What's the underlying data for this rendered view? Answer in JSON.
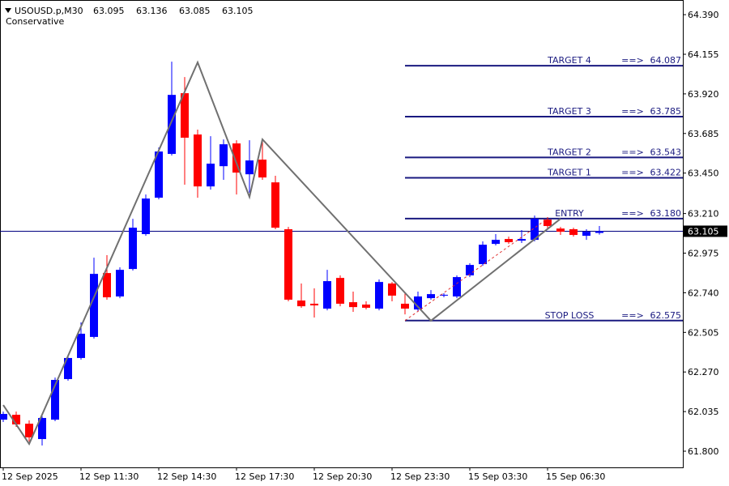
{
  "chart_data": {
    "type": "candlestick",
    "header": {
      "symbol": "USOUSD.p,M30",
      "open": 63.095,
      "high": 63.136,
      "low": 63.085,
      "close": 63.105
    },
    "subtitle": "Conservative",
    "categories": [
      "12 Sep 2025",
      null,
      null,
      null,
      null,
      null,
      "12 Sep 11:30",
      null,
      null,
      null,
      null,
      null,
      "12 Sep 14:30",
      null,
      null,
      null,
      null,
      null,
      "12 Sep 17:30",
      null,
      null,
      null,
      null,
      null,
      "12 Sep 20:30",
      null,
      null,
      null,
      null,
      null,
      "12 Sep 23:30",
      null,
      null,
      null,
      null,
      null,
      "15 Sep 03:30",
      null,
      null,
      null,
      null,
      null,
      "15 Sep 06:30",
      null,
      null,
      null,
      null
    ],
    "open": [
      61.987,
      62.016,
      61.963,
      61.872,
      61.987,
      62.228,
      62.353,
      62.478,
      62.857,
      62.718,
      62.881,
      63.088,
      63.304,
      63.564,
      63.924,
      63.679,
      63.371,
      63.491,
      63.626,
      63.443,
      63.53,
      63.395,
      63.117,
      62.694,
      62.675,
      62.646,
      62.828,
      62.684,
      62.67,
      62.646,
      62.795,
      62.675,
      62.641,
      62.708,
      62.723,
      62.718,
      62.843,
      62.91,
      63.03,
      63.059,
      63.049,
      63.054,
      63.174,
      63.121,
      63.117,
      63.078,
      63.095
    ],
    "high": [
      62.035,
      62.035,
      61.983,
      62.007,
      62.237,
      62.372,
      62.564,
      62.948,
      62.963,
      62.891,
      63.179,
      63.323,
      63.602,
      64.111,
      64.02,
      63.708,
      63.669,
      63.65,
      63.645,
      63.645,
      63.65,
      63.434,
      63.131,
      62.795,
      62.766,
      62.876,
      62.843,
      62.747,
      62.689,
      62.819,
      62.804,
      62.737,
      62.747,
      62.756,
      62.737,
      62.843,
      62.915,
      63.045,
      63.088,
      63.073,
      63.112,
      63.198,
      63.189,
      63.131,
      63.126,
      63.117,
      63.136
    ],
    "low": [
      61.973,
      61.944,
      61.858,
      61.834,
      61.978,
      62.218,
      62.343,
      62.468,
      62.699,
      62.708,
      62.872,
      63.078,
      63.294,
      63.554,
      63.381,
      63.304,
      63.352,
      63.41,
      63.323,
      63.333,
      63.41,
      63.117,
      62.689,
      62.651,
      62.593,
      62.636,
      62.66,
      62.627,
      62.641,
      62.636,
      62.689,
      62.612,
      62.631,
      62.699,
      62.713,
      62.708,
      62.833,
      62.9,
      63.021,
      63.03,
      63.035,
      63.045,
      63.121,
      63.083,
      63.073,
      63.054,
      63.085
    ],
    "close": [
      62.021,
      61.959,
      61.882,
      61.997,
      62.223,
      62.353,
      62.497,
      62.852,
      62.713,
      62.876,
      63.126,
      63.299,
      63.578,
      63.914,
      63.66,
      63.371,
      63.506,
      63.621,
      63.453,
      63.525,
      63.424,
      63.126,
      62.699,
      62.66,
      62.665,
      62.809,
      62.675,
      62.655,
      62.651,
      62.804,
      62.723,
      62.646,
      62.718,
      62.732,
      62.728,
      62.833,
      62.905,
      63.025,
      63.054,
      63.04,
      63.059,
      63.179,
      63.136,
      63.102,
      63.083,
      63.102,
      63.105
    ],
    "up_color": "#0000ff",
    "down_color": "#ff0000",
    "zigzag": {
      "color": "#707070",
      "index": [
        0,
        2,
        15,
        19,
        20,
        33,
        43
      ],
      "values": [
        62.074,
        61.843,
        64.107,
        63.309,
        63.65,
        62.574,
        63.179
      ]
    },
    "trade_line": {
      "color": "#e03030",
      "index": [
        31,
        42
      ],
      "values": [
        62.575,
        63.18
      ]
    },
    "levels": {
      "color": "#1a1a80",
      "arrow": "==>",
      "names": [
        "TARGET 4",
        "TARGET 3",
        "TARGET 2",
        "TARGET 1",
        "ENTRY",
        "STOP LOSS"
      ],
      "values": [
        64.087,
        63.785,
        63.543,
        63.422,
        63.18,
        62.575
      ],
      "value_labels": [
        "64.087",
        "63.785",
        "63.543",
        "63.422",
        "63.180",
        "62.575"
      ]
    },
    "price_line_color": "#000080",
    "ylim": [
      61.704,
      64.477
    ],
    "yticks": [
      {
        "value": 64.39,
        "label": "64.390"
      },
      64.155,
      {
        "value": 63.92,
        "label": "63.920"
      },
      63.685,
      {
        "value": 63.45,
        "label": "63.450"
      },
      {
        "value": 63.21,
        "label": "63.210"
      },
      62.975,
      {
        "value": 62.74,
        "label": "62.740"
      },
      62.505,
      {
        "value": 62.27,
        "label": "62.270"
      },
      62.035,
      {
        "value": 61.8,
        "label": "61.800"
      }
    ],
    "grid": false
  }
}
